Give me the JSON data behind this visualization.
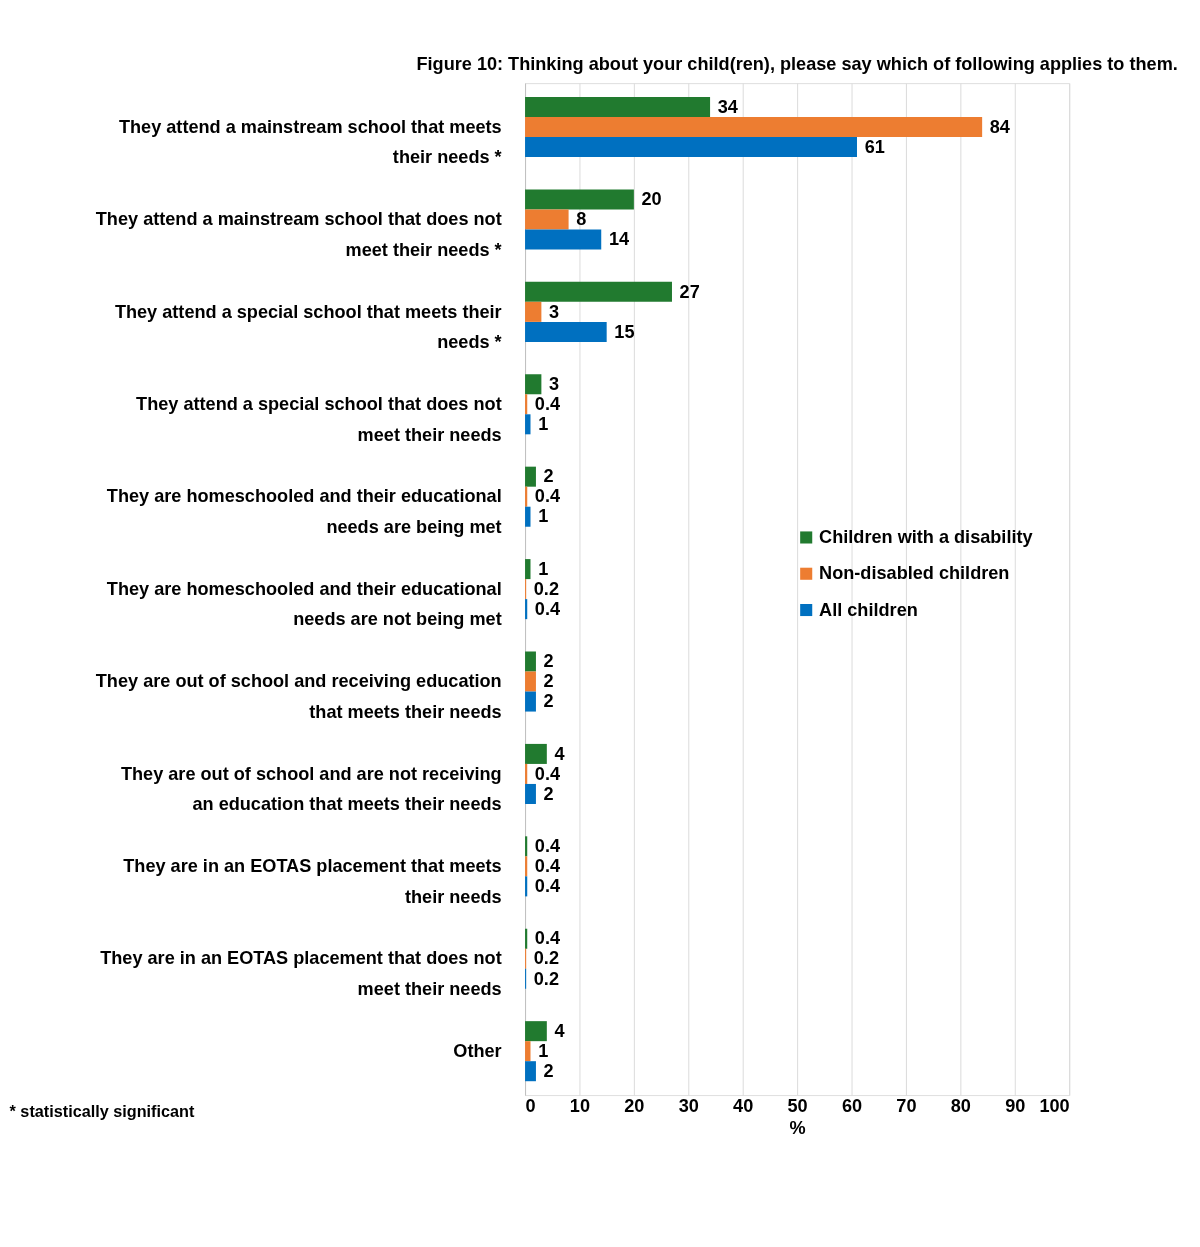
{
  "chart_data": {
    "type": "bar",
    "orientation": "horizontal",
    "title": "Figure 10:  Thinking about your child(ren), please say which of following applies to them.",
    "xlabel": "%",
    "categories": [
      "They attend a mainstream school that meets their needs *",
      "They attend a mainstream school that does not meet their needs *",
      "They attend a special school that meets their needs *",
      "They attend a special school that does not meet their needs",
      "They are homeschooled and their educational needs are being met",
      "They are homeschooled and their educational needs are not being met",
      "They are out of school and receiving education that meets their needs",
      "They are out of school and are not receiving an education that meets their needs",
      "They are in an EOTAS placement that meets their needs",
      "They are in an EOTAS placement that does not meet their needs",
      "Other"
    ],
    "series": [
      {
        "name": "Children with a disability",
        "color": "#217a2f",
        "values": [
          34,
          20,
          27,
          3,
          2,
          1,
          2,
          4,
          0.4,
          0.4,
          4
        ]
      },
      {
        "name": "Non-disabled children",
        "color": "#ed7d31",
        "values": [
          84,
          8,
          3,
          0.4,
          0.4,
          0.2,
          2,
          0.4,
          0.4,
          0.2,
          1
        ]
      },
      {
        "name": "All children",
        "color": "#0070c0",
        "values": [
          61,
          14,
          15,
          1,
          1,
          0.4,
          2,
          2,
          0.4,
          0.2,
          2
        ]
      }
    ],
    "xlim": [
      0,
      100
    ],
    "xticks": [
      0,
      10,
      20,
      30,
      40,
      50,
      60,
      70,
      80,
      90,
      100
    ],
    "grid": "x",
    "legend": "right",
    "data_labels": true,
    "annotations": [
      "* statistically significant"
    ]
  }
}
